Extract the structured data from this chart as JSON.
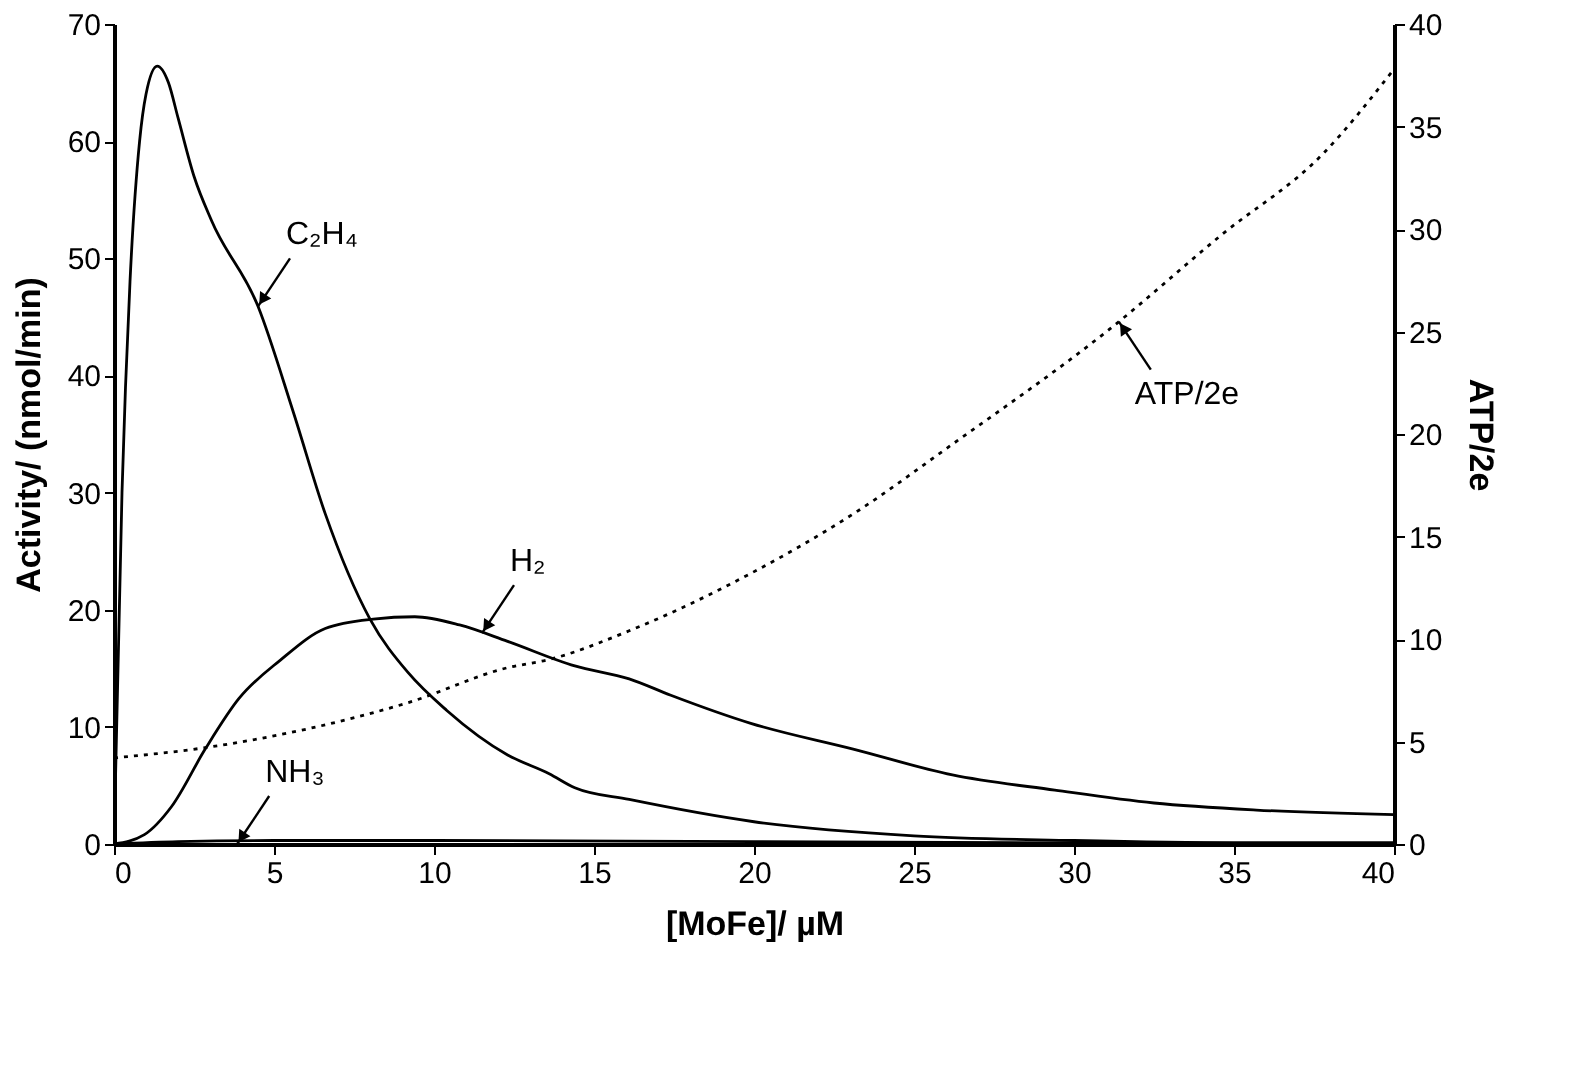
{
  "chart_data": {
    "type": "line",
    "xlabel": "[MoFe]/ µM",
    "ylabel": "Activity/ (nmol/min)",
    "y2label": "ATP/2e",
    "xlim": [
      0,
      40
    ],
    "xticks": [
      0,
      5,
      10,
      15,
      20,
      25,
      30,
      35,
      40
    ],
    "ylim": [
      0,
      70
    ],
    "yticks": [
      0,
      10,
      20,
      30,
      40,
      50,
      60,
      70
    ],
    "y2lim": [
      0,
      40
    ],
    "y2ticks": [
      0,
      5,
      10,
      15,
      20,
      25,
      30,
      35,
      40
    ],
    "grid": false,
    "marker": "none",
    "series": [
      {
        "color": "#000000",
        "line_style": "solid",
        "x": [
          0,
          0.25,
          0.5,
          0.8,
          1.0,
          1.35,
          1.7,
          2.0,
          2.5,
          3.05,
          4.5,
          5.6,
          6.6,
          8.0,
          9.2,
          10.4,
          12.3,
          13.6,
          14.4,
          16.1,
          20.0,
          25,
          30,
          35,
          40
        ],
        "values": [
          0,
          30,
          48,
          60,
          64,
          66.4,
          65,
          62,
          57,
          53.2,
          45.9,
          36.9,
          28.2,
          19.2,
          14.6,
          11.4,
          7.6,
          6,
          4.8,
          3.8,
          1.9,
          0.7,
          0.3,
          0.1,
          0.1
        ]
      },
      {
        "color": "#000000",
        "line_style": "solid",
        "x": [
          0,
          0.95,
          1.8,
          2.85,
          3.9,
          5.2,
          6.6,
          8.1,
          9.4,
          10.8,
          12.3,
          14.4,
          16.1,
          17.4,
          19.9,
          23.1,
          26.2,
          29.4,
          32.5,
          35.7,
          40
        ],
        "values": [
          0,
          0.8,
          3.2,
          8.1,
          12.4,
          15.7,
          18.4,
          19.2,
          19.4,
          18.7,
          17.3,
          15.2,
          14.1,
          12.7,
          10.3,
          8.1,
          5.9,
          4.6,
          3.5,
          2.9,
          2.5
        ]
      },
      {
        "color": "#000000",
        "line_style": "solid",
        "x": [
          0,
          2,
          5,
          10,
          20,
          30,
          40
        ],
        "values": [
          0,
          0.2,
          0.3,
          0.3,
          0.2,
          0.1,
          0.1
        ]
      },
      {
        "color": "#000000",
        "line_style": "dotted",
        "axis": "y2",
        "x": [
          0,
          2.85,
          6,
          9.2,
          12.3,
          13.6,
          16.1,
          19.9,
          23.1,
          26.2,
          31.1,
          34.6,
          37.8,
          40
        ],
        "values": [
          4.2,
          4.7,
          5.6,
          6.9,
          8.6,
          9.0,
          10.4,
          13.2,
          16.1,
          19.5,
          25.1,
          29.7,
          33.7,
          37.8
        ]
      }
    ],
    "annotations": [
      {
        "text": "C₂H₄",
        "x": 4.5,
        "y": 45.9
      },
      {
        "text": "H₂",
        "x": 11.5,
        "y": 18.0
      },
      {
        "text": "NH₃",
        "x": 3.85,
        "y": 0
      },
      {
        "text": "ATP/2e",
        "x": 31.4,
        "y": 44.6
      }
    ]
  }
}
